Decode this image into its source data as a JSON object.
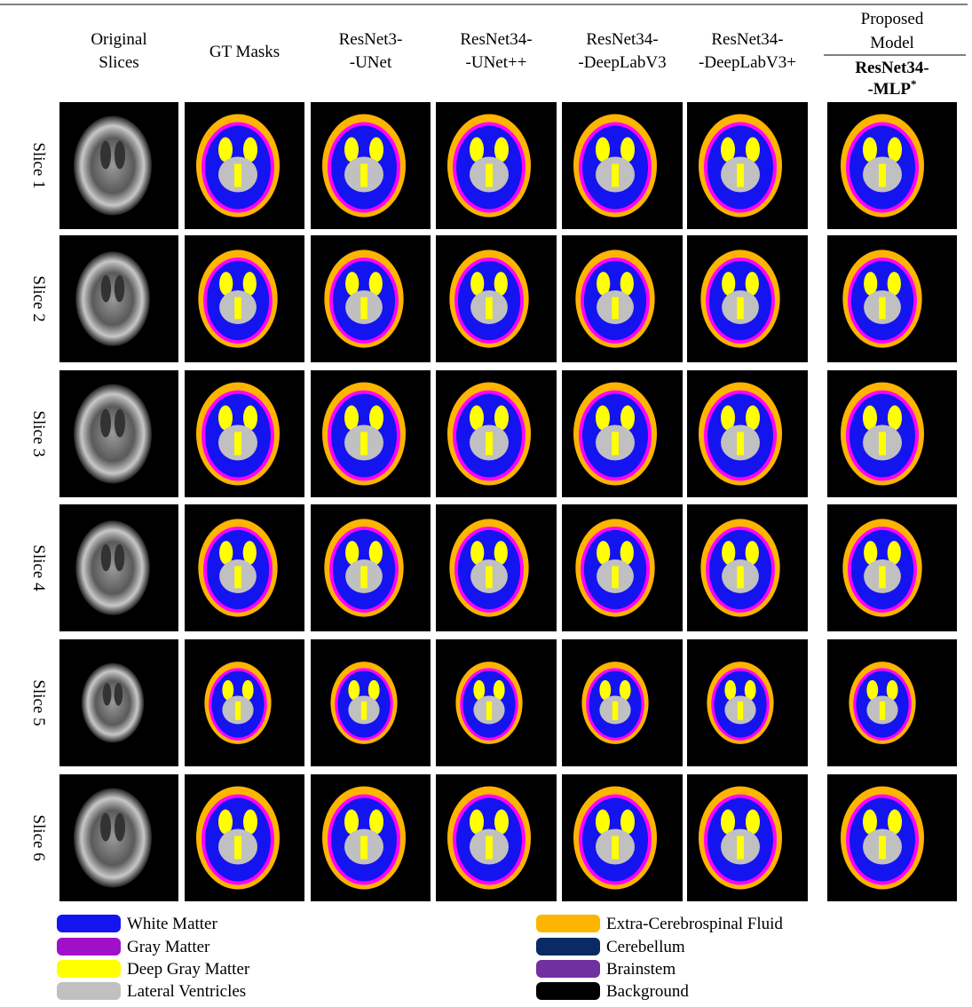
{
  "header": {
    "columns": [
      [
        "Original",
        "Slices"
      ],
      [
        "GT Masks"
      ],
      [
        "ResNet3-",
        "-UNet"
      ],
      [
        "ResNet34-",
        "-UNet++"
      ],
      [
        "ResNet34-",
        "-DeepLabV3"
      ],
      [
        "ResNet34-",
        "-DeepLabV3+"
      ]
    ],
    "proposed": {
      "group": [
        "Proposed",
        "Model"
      ],
      "label": [
        "ResNet34-",
        "-MLP"
      ],
      "superscript": "*"
    }
  },
  "rows": [
    "Slice 1",
    "Slice 2",
    "Slice 3",
    "Slice 4",
    "Slice 5",
    "Slice 6"
  ],
  "legend": [
    {
      "label": "White Matter",
      "color": "#1414f0"
    },
    {
      "label": "Gray Matter",
      "color": "#a010c8"
    },
    {
      "label": "Deep Gray Matter",
      "color": "#ffff00"
    },
    {
      "label": "Lateral Ventricles",
      "color": "#c0c0c0"
    },
    {
      "label": "Extra-Cerebrospinal Fluid",
      "color": "#ffb400"
    },
    {
      "label": "Cerebellum",
      "color": "#0a2a64"
    },
    {
      "label": "Brainstem",
      "color": "#7030a0"
    },
    {
      "label": "Background",
      "color": "#000000"
    }
  ]
}
